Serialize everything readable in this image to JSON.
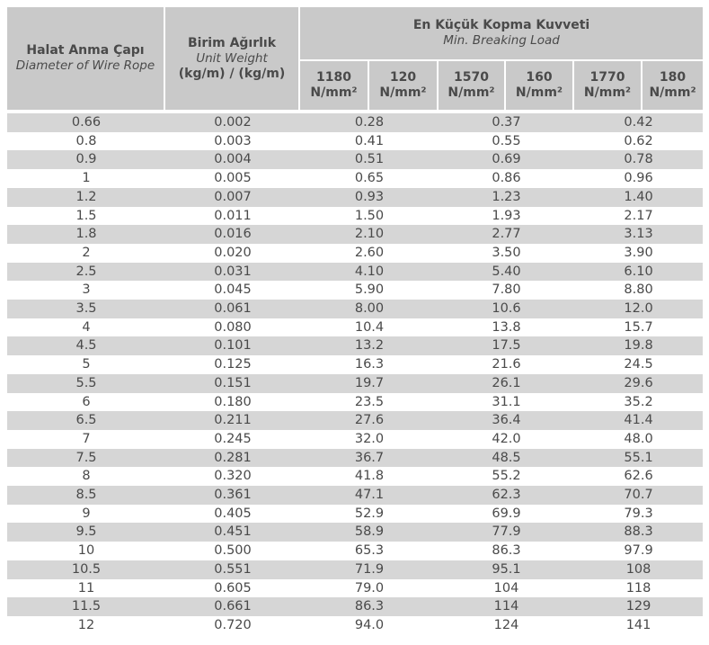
{
  "header": {
    "col1_title": "Halat Anma Çapı",
    "col1_sub": "Diameter of Wire Rope",
    "col2_title": "Birim Ağırlık",
    "col2_sub": "Unit Weight",
    "col2_unit": "(kg/m) / (kg/m)",
    "group_title": "En Küçük Kopma Kuvveti",
    "group_sub": "Min. Breaking Load",
    "strengths": [
      {
        "value": "1180",
        "unit": "N/mm²"
      },
      {
        "value": "120",
        "unit": "N/mm²"
      },
      {
        "value": "1570",
        "unit": "N/mm²"
      },
      {
        "value": "160",
        "unit": "N/mm²"
      },
      {
        "value": "1770",
        "unit": "N/mm²"
      },
      {
        "value": "180",
        "unit": "N/mm²"
      }
    ]
  },
  "rows": [
    [
      "0.66",
      "0.002",
      "0.28",
      "0.37",
      "0.42"
    ],
    [
      "0.8",
      "0.003",
      "0.41",
      "0.55",
      "0.62"
    ],
    [
      "0.9",
      "0.004",
      "0.51",
      "0.69",
      "0.78"
    ],
    [
      "1",
      "0.005",
      "0.65",
      "0.86",
      "0.96"
    ],
    [
      "1.2",
      "0.007",
      "0.93",
      "1.23",
      "1.40"
    ],
    [
      "1.5",
      "0.011",
      "1.50",
      "1.93",
      "2.17"
    ],
    [
      "1.8",
      "0.016",
      "2.10",
      "2.77",
      "3.13"
    ],
    [
      "2",
      "0.020",
      "2.60",
      "3.50",
      "3.90"
    ],
    [
      "2.5",
      "0.031",
      "4.10",
      "5.40",
      "6.10"
    ],
    [
      "3",
      "0.045",
      "5.90",
      "7.80",
      "8.80"
    ],
    [
      "3.5",
      "0.061",
      "8.00",
      "10.6",
      "12.0"
    ],
    [
      "4",
      "0.080",
      "10.4",
      "13.8",
      "15.7"
    ],
    [
      "4.5",
      "0.101",
      "13.2",
      "17.5",
      "19.8"
    ],
    [
      "5",
      "0.125",
      "16.3",
      "21.6",
      "24.5"
    ],
    [
      "5.5",
      "0.151",
      "19.7",
      "26.1",
      "29.6"
    ],
    [
      "6",
      "0.180",
      "23.5",
      "31.1",
      "35.2"
    ],
    [
      "6.5",
      "0.211",
      "27.6",
      "36.4",
      "41.4"
    ],
    [
      "7",
      "0.245",
      "32.0",
      "42.0",
      "48.0"
    ],
    [
      "7.5",
      "0.281",
      "36.7",
      "48.5",
      "55.1"
    ],
    [
      "8",
      "0.320",
      "41.8",
      "55.2",
      "62.6"
    ],
    [
      "8.5",
      "0.361",
      "47.1",
      "62.3",
      "70.7"
    ],
    [
      "9",
      "0.405",
      "52.9",
      "69.9",
      "79.3"
    ],
    [
      "9.5",
      "0.451",
      "58.9",
      "77.9",
      "88.3"
    ],
    [
      "10",
      "0.500",
      "65.3",
      "86.3",
      "97.9"
    ],
    [
      "10.5",
      "0.551",
      "71.9",
      "95.1",
      "108"
    ],
    [
      "11",
      "0.605",
      "79.0",
      "104",
      "118"
    ],
    [
      "11.5",
      "0.661",
      "86.3",
      "114",
      "129"
    ],
    [
      "12",
      "0.720",
      "94.0",
      "124",
      "141"
    ]
  ]
}
